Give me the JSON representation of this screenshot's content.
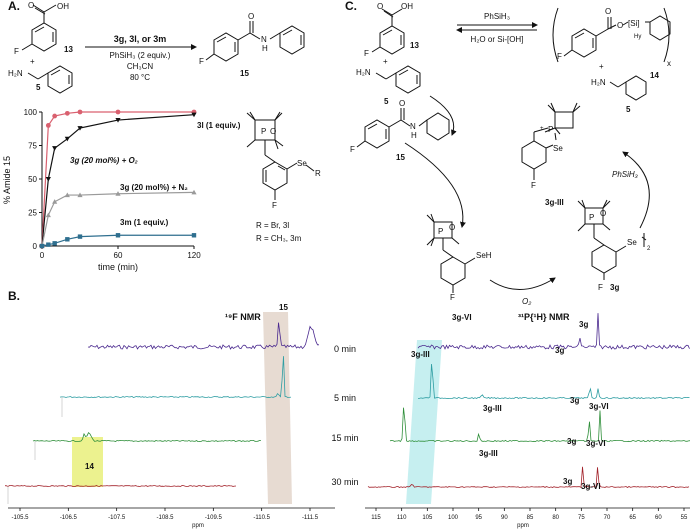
{
  "panel_a": {
    "label": "A.",
    "reactant_acid": "13",
    "reactant_amine": "5",
    "acid_oh": "OH",
    "acid_o": "O",
    "amine_h2n": "H₂N",
    "fluoro": "F",
    "plus": "+",
    "conditions": [
      "3g, 3l, or 3m",
      "PhSiH₃ (2 equiv.)",
      "CH₃CN",
      "80 °C"
    ],
    "product": "15",
    "product_nh": "N",
    "product_h": "H"
  },
  "chart_data": {
    "type": "line",
    "xlabel": "time (min)",
    "ylabel": "% Amide 15",
    "xlim": [
      0,
      120
    ],
    "ylim": [
      0,
      100
    ],
    "xticks": [
      0,
      60,
      120
    ],
    "yticks": [
      0,
      25,
      50,
      75,
      100
    ],
    "series": [
      {
        "name": "3l (1 equiv.)",
        "color": "#d9606f",
        "marker": "circle",
        "x": [
          0,
          5,
          10,
          20,
          30,
          60,
          120
        ],
        "y": [
          0,
          90,
          97,
          99,
          100,
          100,
          100
        ]
      },
      {
        "name": "3g (20 mol%) + O₂",
        "color": "#111111",
        "marker": "triangle-down",
        "x": [
          0,
          5,
          10,
          20,
          30,
          60,
          120
        ],
        "y": [
          0,
          50,
          73,
          80,
          88,
          94,
          98
        ]
      },
      {
        "name": "3g (20 mol%) + N₂",
        "color": "#9a9a9a",
        "marker": "triangle-up",
        "x": [
          0,
          5,
          10,
          20,
          30,
          60,
          120
        ],
        "y": [
          0,
          23,
          33,
          38,
          38,
          39,
          40
        ]
      },
      {
        "name": "3m (1 equiv.)",
        "color": "#2f6f8f",
        "marker": "square",
        "x": [
          0,
          5,
          10,
          20,
          30,
          60,
          120
        ],
        "y": [
          0,
          1,
          2,
          5,
          7,
          8,
          8
        ]
      }
    ],
    "annotations": [
      "3l (1 equiv.)",
      "3g (20 mol%) + O₂",
      "3g (20 mol%) + N₂",
      "3m (1 equiv.)"
    ]
  },
  "catalyst_legend": {
    "r_br": "R = Br, 3l",
    "r_ch3": "R = CH₃, 3m",
    "se_r": "Se",
    "r": "R",
    "p": "P",
    "o": "O",
    "f": "F"
  },
  "panel_b": {
    "label": "B.",
    "f_title": "¹⁹F NMR",
    "p_title": "³¹P{¹H} NMR",
    "time_labels": [
      "0 min",
      "5 min",
      "15 min",
      "30 min"
    ],
    "f_axis_ticks": [
      "-105.5",
      "-106.5",
      "-107.5",
      "-108.5",
      "-109.5",
      "-110.5",
      "-111.5"
    ],
    "p_axis_ticks": [
      "115",
      "110",
      "105",
      "100",
      "95",
      "90",
      "85",
      "80",
      "75",
      "70",
      "65",
      "60",
      "55"
    ],
    "axis_unit": "ppm",
    "peak_14": "14",
    "peak_15": "15",
    "peak_3g": "3g",
    "peak_3g_iii": "3g-III",
    "peak_3g_vi": "3g-VI"
  },
  "panel_c": {
    "label": "C.",
    "eq_top": "PhSiH₃",
    "eq_bottom": "H₂O or Si-[OH]",
    "acid": "13",
    "silyl_ester": "14",
    "si": "[Si]",
    "hy": "Hy",
    "x": "x",
    "amine": "5",
    "product": "15",
    "cat_iii": "3g-III",
    "cat_vi": "3g-VI",
    "cat_3g": "3g",
    "o2": "O₂",
    "phsih3": "PhSiH₃",
    "se": "Se",
    "seh": "SeH",
    "p": "P",
    "o": "O",
    "f": "F",
    "plus_charge": "+",
    "h2n": "H₂N",
    "n": "N",
    "h": "H"
  }
}
